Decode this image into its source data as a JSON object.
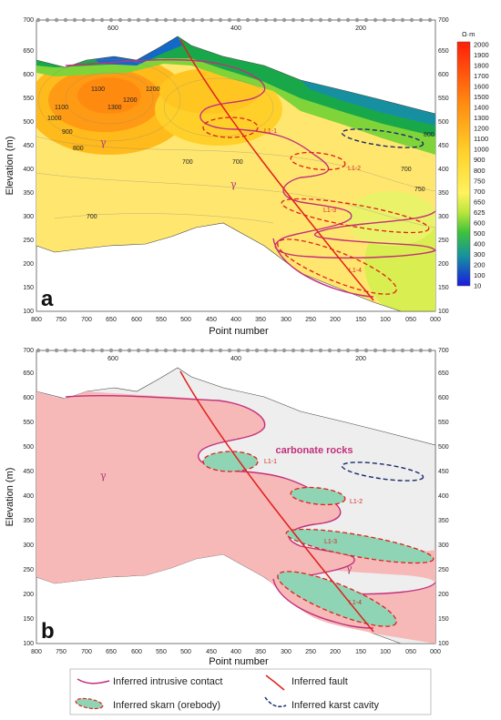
{
  "panel_a": {
    "letter": "a",
    "ylabel": "Elevation (m)",
    "xlabel": "Point number",
    "x_ticks": [
      "800",
      "750",
      "700",
      "650",
      "600",
      "550",
      "500",
      "450",
      "400",
      "350",
      "300",
      "250",
      "200",
      "150",
      "100",
      "050",
      "000"
    ],
    "y_ticks": [
      "100",
      "150",
      "200",
      "250",
      "300",
      "350",
      "400",
      "450",
      "500",
      "550",
      "600",
      "650",
      "700"
    ],
    "top_ticks": [
      "600",
      "400",
      "200"
    ],
    "orebody_labels": [
      "L1-1",
      "L1-2",
      "L1-3",
      "L1-4"
    ],
    "gamma_symbol": "γ",
    "colorbar": {
      "unit": "Ω·m",
      "levels": [
        "2000",
        "1900",
        "1800",
        "1700",
        "1600",
        "1500",
        "1400",
        "1300",
        "1200",
        "1100",
        "1000",
        "900",
        "800",
        "750",
        "700",
        "650",
        "625",
        "600",
        "500",
        "400",
        "300",
        "200",
        "100",
        "10"
      ],
      "colors": [
        "#ff1e0a",
        "#ff3a0a",
        "#ff530c",
        "#ff6a0e",
        "#ff7d10",
        "#ff9012",
        "#ffa015",
        "#ffae18",
        "#ffba1c",
        "#ffc622",
        "#ffd02a",
        "#ffd935",
        "#ffe040",
        "#ffe84d",
        "#fff25e",
        "#e6f24a",
        "#b9e63c",
        "#7fd43a",
        "#3fc23c",
        "#18a84a",
        "#1690a0",
        "#1468c8",
        "#1640dc",
        "#1a1ae0"
      ]
    },
    "contour_labels": [
      "1100",
      "1200",
      "1300",
      "1200",
      "1100",
      "1000",
      "900",
      "800",
      "700",
      "700",
      "700",
      "700",
      "800",
      "750"
    ]
  },
  "panel_b": {
    "letter": "b",
    "ylabel": "Elevation (m)",
    "xlabel": "Point number",
    "x_ticks": [
      "800",
      "750",
      "700",
      "650",
      "600",
      "550",
      "500",
      "450",
      "400",
      "350",
      "300",
      "250",
      "200",
      "150",
      "100",
      "050",
      "000"
    ],
    "y_ticks": [
      "100",
      "150",
      "200",
      "250",
      "300",
      "350",
      "400",
      "450",
      "500",
      "550",
      "600",
      "650",
      "700"
    ],
    "top_ticks": [
      "600",
      "400",
      "200"
    ],
    "orebody_labels": [
      "L1-1",
      "L1-2",
      "L1-3",
      "L1-4"
    ],
    "gamma_symbol": "γ",
    "rock_label": "carbonate rocks"
  },
  "legend": {
    "intrusive_contact": "Inferred intrusive contact",
    "fault": "Inferred fault",
    "skarn": "Inferred skarn (orebody)",
    "karst": "Inferred karst cavity"
  },
  "colors": {
    "intrusion_fill": "#f7b8b8",
    "intrusive_contact": "#c2307c",
    "fault": "#e0201c",
    "skarn_fill": "#8fd4b4",
    "skarn_outline": "#e0201c",
    "karst": "#1a2a6c",
    "carbonate_fill": "#eeeeee"
  }
}
